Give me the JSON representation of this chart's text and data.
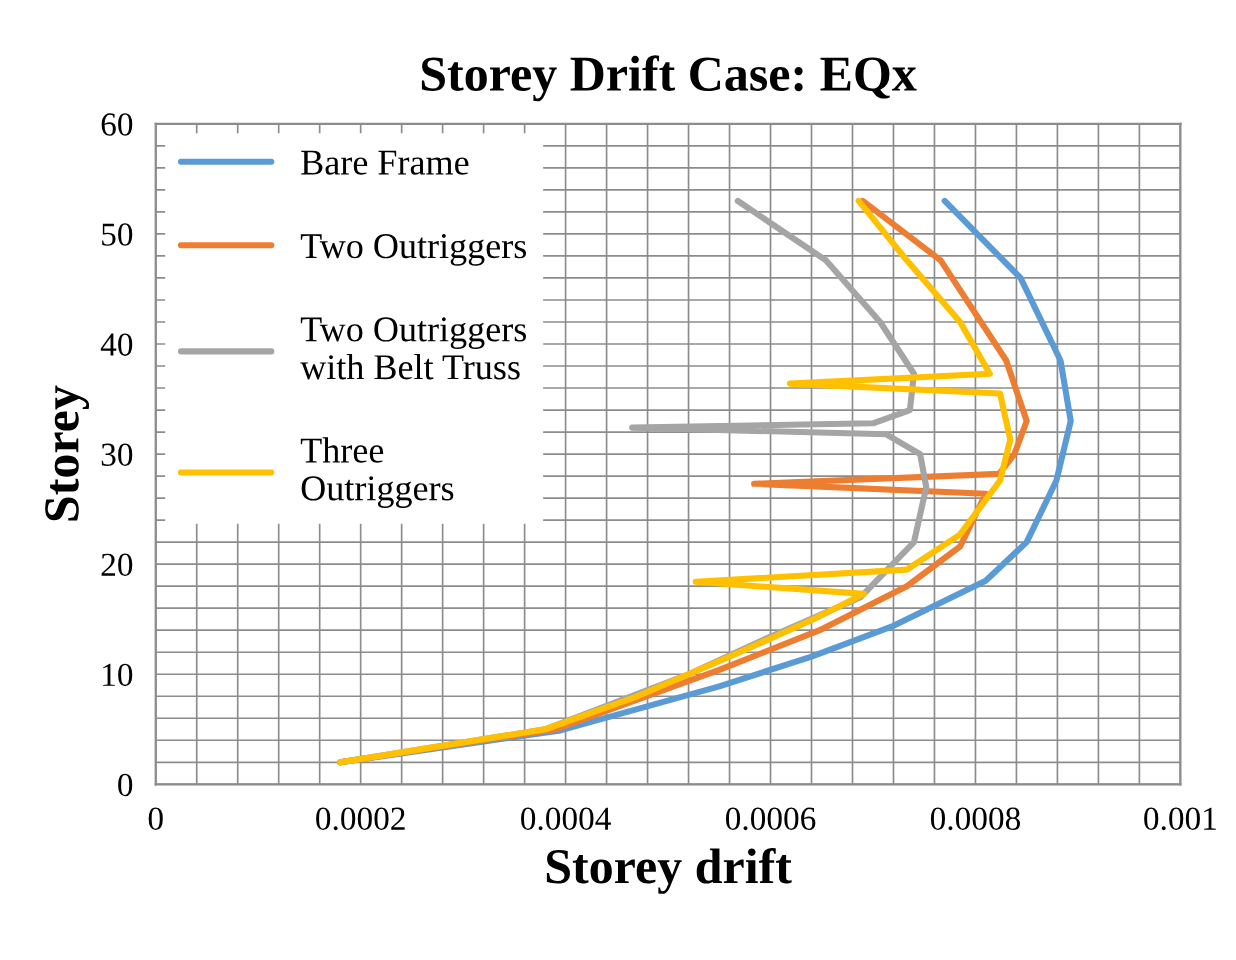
{
  "chart_data": {
    "type": "line",
    "title": "Storey Drift Case: EQx",
    "xlabel": "Storey drift",
    "ylabel": "Storey",
    "xlim": [
      0,
      0.001
    ],
    "ylim": [
      0,
      60
    ],
    "xticks": [
      0,
      {
        "value": 4e-05,
        "label": null
      },
      {
        "value": 8e-05,
        "label": null
      },
      {
        "value": 0.00012,
        "label": null
      },
      {
        "value": 0.00016,
        "label": null
      },
      0.0002,
      {
        "value": 0.00024,
        "label": null
      },
      {
        "value": 0.00028,
        "label": null
      },
      {
        "value": 0.00032,
        "label": null
      },
      {
        "value": 0.00036,
        "label": null
      },
      0.0004,
      {
        "value": 0.00044,
        "label": null
      },
      {
        "value": 0.00048,
        "label": null
      },
      {
        "value": 0.00052,
        "label": null
      },
      {
        "value": 0.00056,
        "label": null
      },
      0.0006,
      {
        "value": 0.00064,
        "label": null
      },
      {
        "value": 0.00068,
        "label": null
      },
      {
        "value": 0.00072,
        "label": null
      },
      {
        "value": 0.00076,
        "label": null
      },
      0.0008,
      {
        "value": 0.00084,
        "label": null
      },
      {
        "value": 0.00088,
        "label": null
      },
      {
        "value": 0.00092,
        "label": null
      },
      {
        "value": 0.00096,
        "label": null
      },
      0.001
    ],
    "yticks": [
      0,
      {
        "value": 2,
        "label": null
      },
      {
        "value": 4,
        "label": null
      },
      {
        "value": 6,
        "label": null
      },
      {
        "value": 8,
        "label": null
      },
      10,
      {
        "value": 12,
        "label": null
      },
      {
        "value": 14,
        "label": null
      },
      {
        "value": 16,
        "label": null
      },
      {
        "value": 18,
        "label": null
      },
      20,
      {
        "value": 22,
        "label": null
      },
      {
        "value": 24,
        "label": null
      },
      {
        "value": 26,
        "label": null
      },
      {
        "value": 28,
        "label": null
      },
      30,
      {
        "value": 32,
        "label": null
      },
      {
        "value": 34,
        "label": null
      },
      {
        "value": 36,
        "label": null
      },
      {
        "value": 38,
        "label": null
      },
      40,
      {
        "value": 42,
        "label": null
      },
      {
        "value": 44,
        "label": null
      },
      {
        "value": 46,
        "label": null
      },
      {
        "value": 48,
        "label": null
      },
      50,
      {
        "value": 52,
        "label": null
      },
      {
        "value": 54,
        "label": null
      },
      {
        "value": 56,
        "label": null
      },
      {
        "value": 58,
        "label": null
      },
      60
    ],
    "grid": true,
    "legend": "top left",
    "marker": "none",
    "line_style": "solid",
    "series": [
      {
        "name": "Bare Frame",
        "color": "#5b9bd5",
        "x": [
          0.00077,
          0.000844,
          0.000883,
          0.000893,
          0.000879,
          0.00085,
          0.00081,
          0.00072,
          0.00064,
          0.00055,
          0.000395,
          0.00018
        ],
        "values": [
          53,
          46,
          38.5,
          33,
          27.6,
          22,
          18.5,
          14.4,
          11.6,
          8.9,
          4.9,
          2
        ]
      },
      {
        "name": "Two Outriggers",
        "color": "#ed7d31",
        "x": [
          0.00069,
          0.000766,
          0.00083,
          0.00085,
          0.000838,
          0.000823,
          0.000584,
          0.00081,
          0.000785,
          0.000733,
          0.000648,
          0.00055,
          0.00039,
          0.00018
        ],
        "values": [
          53,
          47.6,
          38.5,
          33,
          30,
          28.2,
          27.3,
          26.4,
          21.6,
          18,
          14,
          10.4,
          5,
          2
        ]
      },
      {
        "name": "Two Outriggers\nwith Belt Truss",
        "color": "#a5a5a5",
        "x": [
          0.000568,
          0.000654,
          0.000707,
          0.00074,
          0.000736,
          0.0007,
          0.000465,
          0.000713,
          0.000746,
          0.000752,
          0.00074,
          0.000688,
          0.00059,
          0.00052,
          0.00038,
          0.00018
        ],
        "values": [
          53,
          47.6,
          42,
          37.3,
          34,
          32.8,
          32.4,
          31.8,
          30,
          27,
          22,
          17,
          13,
          10,
          5,
          2
        ]
      },
      {
        "name": "Three\nOutriggers",
        "color": "#ffc000",
        "x": [
          0.000686,
          0.000733,
          0.000785,
          0.000814,
          0.000619,
          0.000824,
          0.000834,
          0.000824,
          0.000785,
          0.000733,
          0.000527,
          0.000691,
          0.000642,
          0.00057,
          0.00047,
          0.00038,
          0.00018
        ],
        "values": [
          53,
          47.6,
          42,
          37.3,
          36.4,
          35.5,
          31.3,
          27.6,
          22.7,
          19.5,
          18.4,
          17.3,
          15,
          12,
          8,
          5,
          2
        ]
      }
    ]
  }
}
